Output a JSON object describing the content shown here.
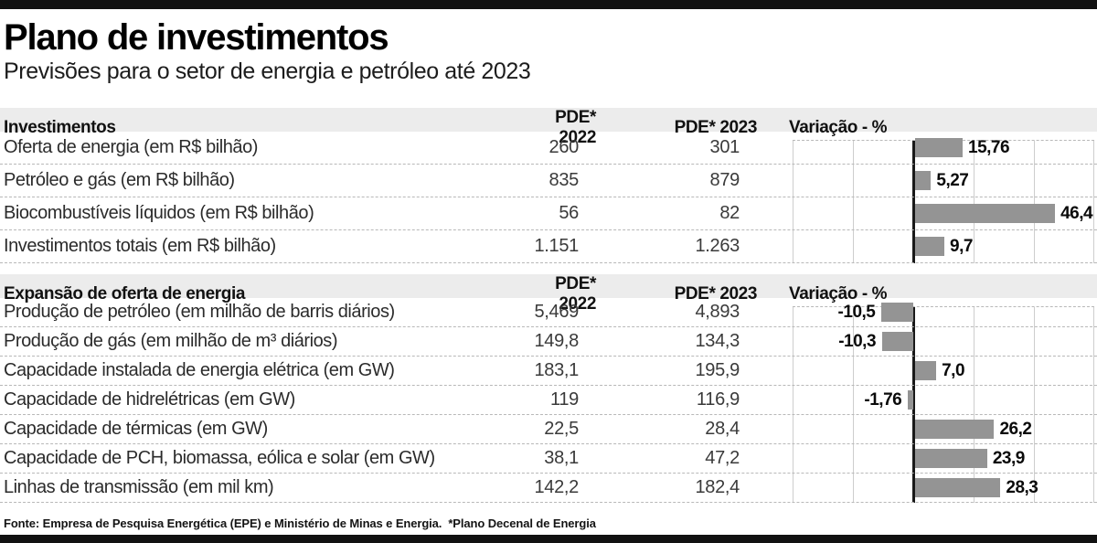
{
  "page": {
    "title": "Plano de investimentos",
    "subtitle": "Previsões para o setor de energia e petróleo até 2023",
    "footer": "Fonte: Empresa de Pesquisa Energética (EPE) e Ministério de Minas e Energia.  *Plano Decenal de Energia"
  },
  "columns": {
    "col_2022": "PDE* 2022",
    "col_2023": "PDE* 2023",
    "col_variation": "Variação - %"
  },
  "colors": {
    "bar": "#949494",
    "band_bg": "#ececec",
    "rule": "#111111",
    "zero_line": "#191919",
    "gridline": "#cdcdcd"
  },
  "sections": [
    {
      "header": "Investimentos",
      "rows": [
        {
          "label": "Oferta de energia (em R$ bilhão)",
          "pde2022": "260",
          "pde2023": "301",
          "variation_value": 15.76,
          "variation_label": "15,76"
        },
        {
          "label": "Petróleo e gás (em R$ bilhão)",
          "pde2022": "835",
          "pde2023": "879",
          "variation_value": 5.27,
          "variation_label": "5,27"
        },
        {
          "label": "Biocombustíveis líquidos (em R$ bilhão)",
          "pde2022": "56",
          "pde2023": "82",
          "variation_value": 46.4,
          "variation_label": "46,4"
        },
        {
          "label": "Investimentos totais (em R$ bilhão)",
          "pde2022": "1.151",
          "pde2023": "1.263",
          "variation_value": 9.7,
          "variation_label": "9,7"
        }
      ]
    },
    {
      "header": "Expansão de oferta de energia",
      "rows": [
        {
          "label": "Produção de petróleo (em milhão de barris diários)",
          "pde2022": "5,469",
          "pde2023": "4,893",
          "variation_value": -10.5,
          "variation_label": "-10,5"
        },
        {
          "label": "Produção de gás (em milhão de m³ diários)",
          "pde2022": "149,8",
          "pde2023": "134,3",
          "variation_value": -10.3,
          "variation_label": "-10,3"
        },
        {
          "label": "Capacidade instalada de energia elétrica (em GW)",
          "pde2022": "183,1",
          "pde2023": "195,9",
          "variation_value": 7.0,
          "variation_label": "7,0"
        },
        {
          "label": "Capacidade de hidrelétricas (em GW)",
          "pde2022": "119",
          "pde2023": "116,9",
          "variation_value": -1.76,
          "variation_label": "-1,76"
        },
        {
          "label": "Capacidade de térmicas (em GW)",
          "pde2022": "22,5",
          "pde2023": "28,4",
          "variation_value": 26.2,
          "variation_label": "26,2"
        },
        {
          "label": "Capacidade de PCH, biomassa, eólica e solar (em GW)",
          "pde2022": "38,1",
          "pde2023": "47,2",
          "variation_value": 23.9,
          "variation_label": "23,9"
        },
        {
          "label": "Linhas de transmissão (em mil km)",
          "pde2022": "142,2",
          "pde2023": "182,4",
          "variation_value": 28.3,
          "variation_label": "28,3"
        }
      ]
    }
  ],
  "chart_data": [
    {
      "type": "bar",
      "orientation": "horizontal",
      "title": "Investimentos — Variação - %",
      "categories": [
        "Oferta de energia (em R$ bilhão)",
        "Petróleo e gás (em R$ bilhão)",
        "Biocombustíveis líquidos (em R$ bilhão)",
        "Investimentos totais (em R$ bilhão)"
      ],
      "values": [
        15.76,
        5.27,
        46.4,
        9.7
      ],
      "value_labels": [
        "15,76",
        "5,27",
        "46,4",
        "9,7"
      ],
      "xlabel": "Variação - %",
      "xlim": [
        -40,
        60
      ],
      "gridline_step": 20,
      "grid": true,
      "legend": false,
      "bar_color": "#949494"
    },
    {
      "type": "bar",
      "orientation": "horizontal",
      "title": "Expansão de oferta de energia — Variação - %",
      "categories": [
        "Produção de petróleo (em milhão de barris diários)",
        "Produção de gás (em milhão de m³ diários)",
        "Capacidade instalada de energia elétrica (em GW)",
        "Capacidade de hidrelétricas (em GW)",
        "Capacidade de térmicas (em GW)",
        "Capacidade de PCH, biomassa, eólica e solar (em GW)",
        "Linhas de transmissão (em mil km)"
      ],
      "values": [
        -10.5,
        -10.3,
        7.0,
        -1.76,
        26.2,
        23.9,
        28.3
      ],
      "value_labels": [
        "-10,5",
        "-10,3",
        "7,0",
        "-1,76",
        "26,2",
        "23,9",
        "28,3"
      ],
      "xlabel": "Variação - %",
      "xlim": [
        -40,
        60
      ],
      "gridline_step": 20,
      "grid": true,
      "legend": false,
      "bar_color": "#949494"
    }
  ]
}
